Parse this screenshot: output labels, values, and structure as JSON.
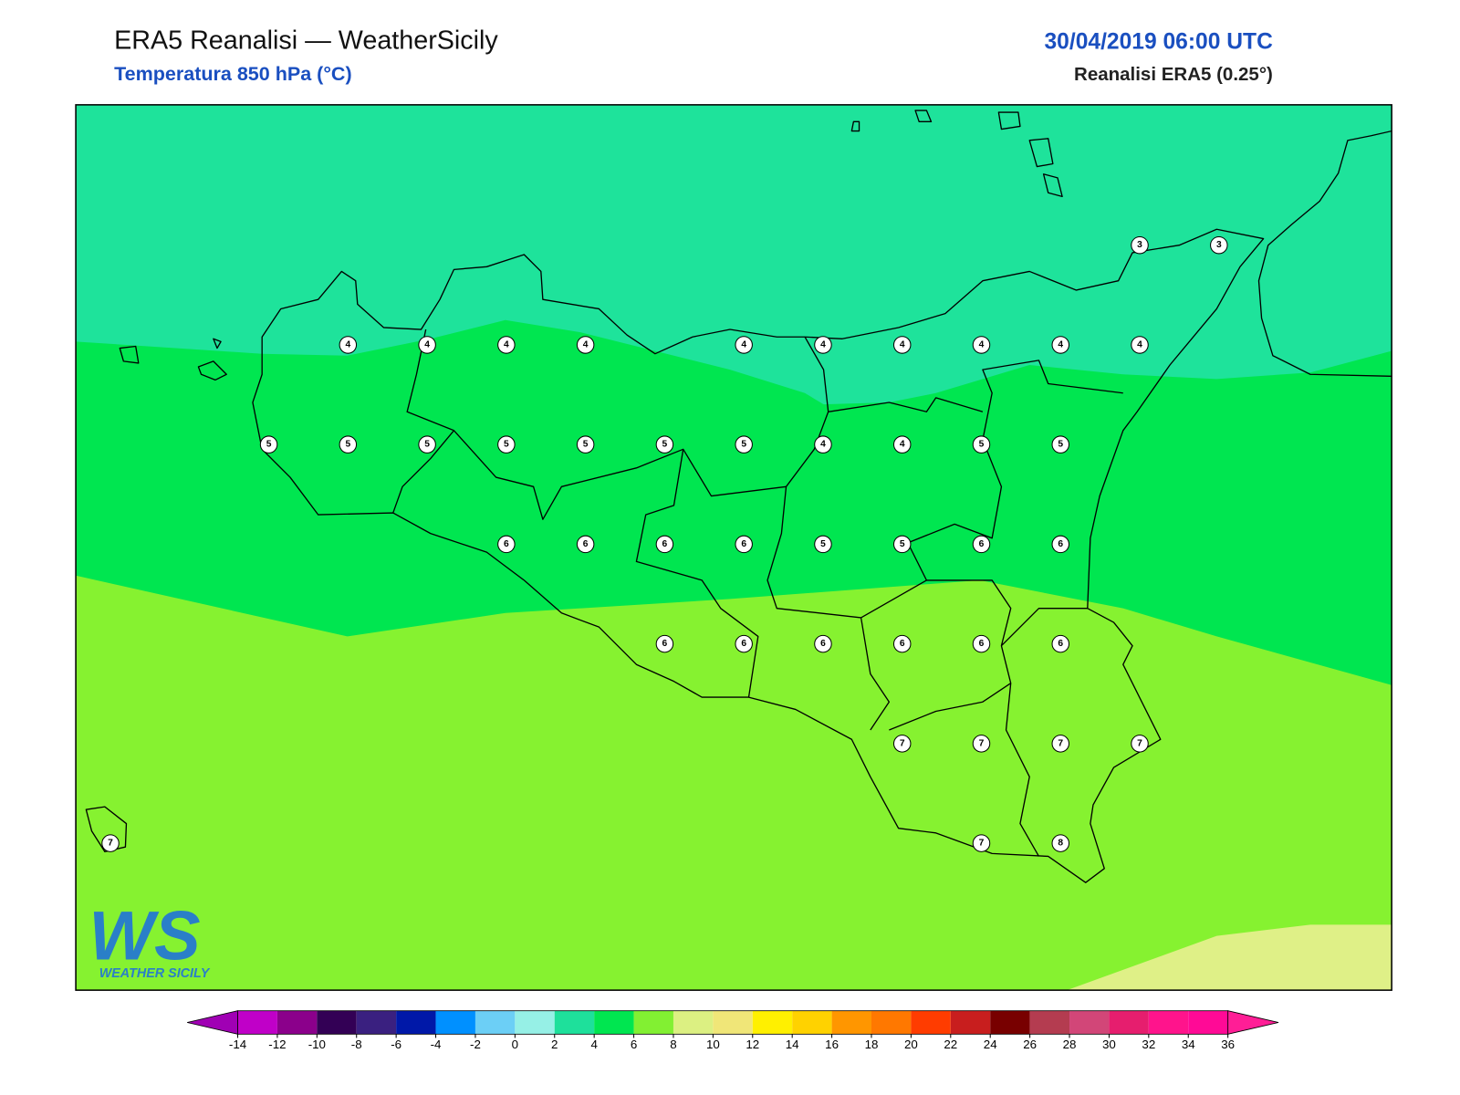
{
  "header": {
    "title": "ERA5 Reanalisi — WeatherSicily",
    "subtitle": "Temperatura 850 hPa (°C)",
    "datetime": "30/04/2019 06:00 UTC",
    "source": "Reanalisi ERA5 (0.25°)"
  },
  "logo": {
    "mark": "WS",
    "name": "WEATHER SICILY"
  },
  "stations": {
    "rows": [
      [
        null,
        null,
        null,
        null,
        null,
        null,
        null,
        null,
        null,
        null,
        null,
        null,
        null,
        3,
        3
      ],
      [
        null,
        null,
        null,
        4,
        4,
        4,
        4,
        null,
        4,
        4,
        4,
        4,
        4,
        4,
        null
      ],
      [
        null,
        null,
        5,
        5,
        5,
        5,
        5,
        5,
        5,
        4,
        4,
        5,
        5,
        null,
        null
      ],
      [
        null,
        null,
        null,
        null,
        null,
        6,
        6,
        6,
        6,
        5,
        5,
        6,
        6,
        null,
        null
      ],
      [
        null,
        null,
        null,
        null,
        null,
        null,
        null,
        6,
        6,
        6,
        6,
        6,
        6,
        null,
        null
      ],
      [
        null,
        null,
        null,
        null,
        null,
        null,
        null,
        null,
        null,
        null,
        7,
        7,
        7,
        7,
        null
      ],
      [
        7,
        null,
        null,
        null,
        null,
        null,
        null,
        null,
        null,
        null,
        null,
        7,
        8,
        null,
        null
      ]
    ]
  },
  "colorbar": {
    "ticks": [
      -14,
      -12,
      -10,
      -8,
      -6,
      -4,
      -2,
      0,
      2,
      4,
      6,
      8,
      10,
      12,
      14,
      16,
      18,
      20,
      22,
      24,
      26,
      28,
      30,
      32,
      34,
      36
    ],
    "colors": [
      "#c000c8",
      "#8b008b",
      "#330055",
      "#3a2080",
      "#0018a8",
      "#0090ff",
      "#6ccff6",
      "#96f0e6",
      "#1ee09b",
      "#00e650",
      "#82f032",
      "#dcf082",
      "#f0e678",
      "#fff000",
      "#ffd200",
      "#ff9600",
      "#ff7800",
      "#ff3c00",
      "#c81e1e",
      "#780000",
      "#b43c50",
      "#d24678",
      "#e61e6e",
      "#ff148c",
      "#ff0a96"
    ],
    "under": "#a000b4",
    "over": "#ff1e96"
  }
}
